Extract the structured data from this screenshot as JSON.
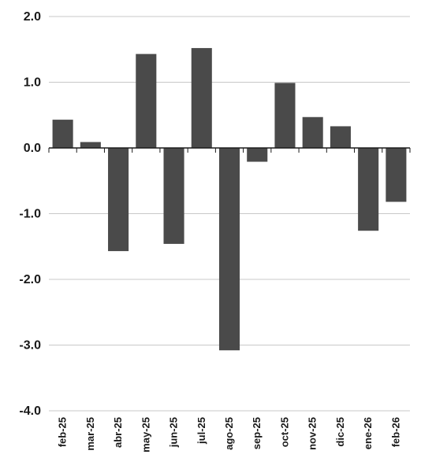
{
  "chart_data": {
    "type": "bar",
    "title": "",
    "xlabel": "",
    "ylabel": "",
    "categories": [
      "feb-25",
      "mar-25",
      "abr-25",
      "may-25",
      "jun-25",
      "jul-25",
      "ago-25",
      "sep-25",
      "oct-25",
      "nov-25",
      "dic-25",
      "ene-26",
      "feb-26"
    ],
    "values": [
      0.43,
      0.09,
      -1.57,
      1.43,
      -1.46,
      1.52,
      -3.08,
      -0.21,
      0.99,
      0.47,
      0.33,
      -1.26,
      -0.82
    ],
    "ylim": [
      -4.0,
      2.0
    ],
    "yticks": [
      "2.0",
      "1.0",
      "0.0",
      "-1.0",
      "-2.0",
      "-3.0",
      "-4.0"
    ],
    "grid": true,
    "legend": "none",
    "bar_color": "#4a4a4a",
    "grid_color": "#c8c8c8",
    "axis_color": "#1a1a1a"
  }
}
